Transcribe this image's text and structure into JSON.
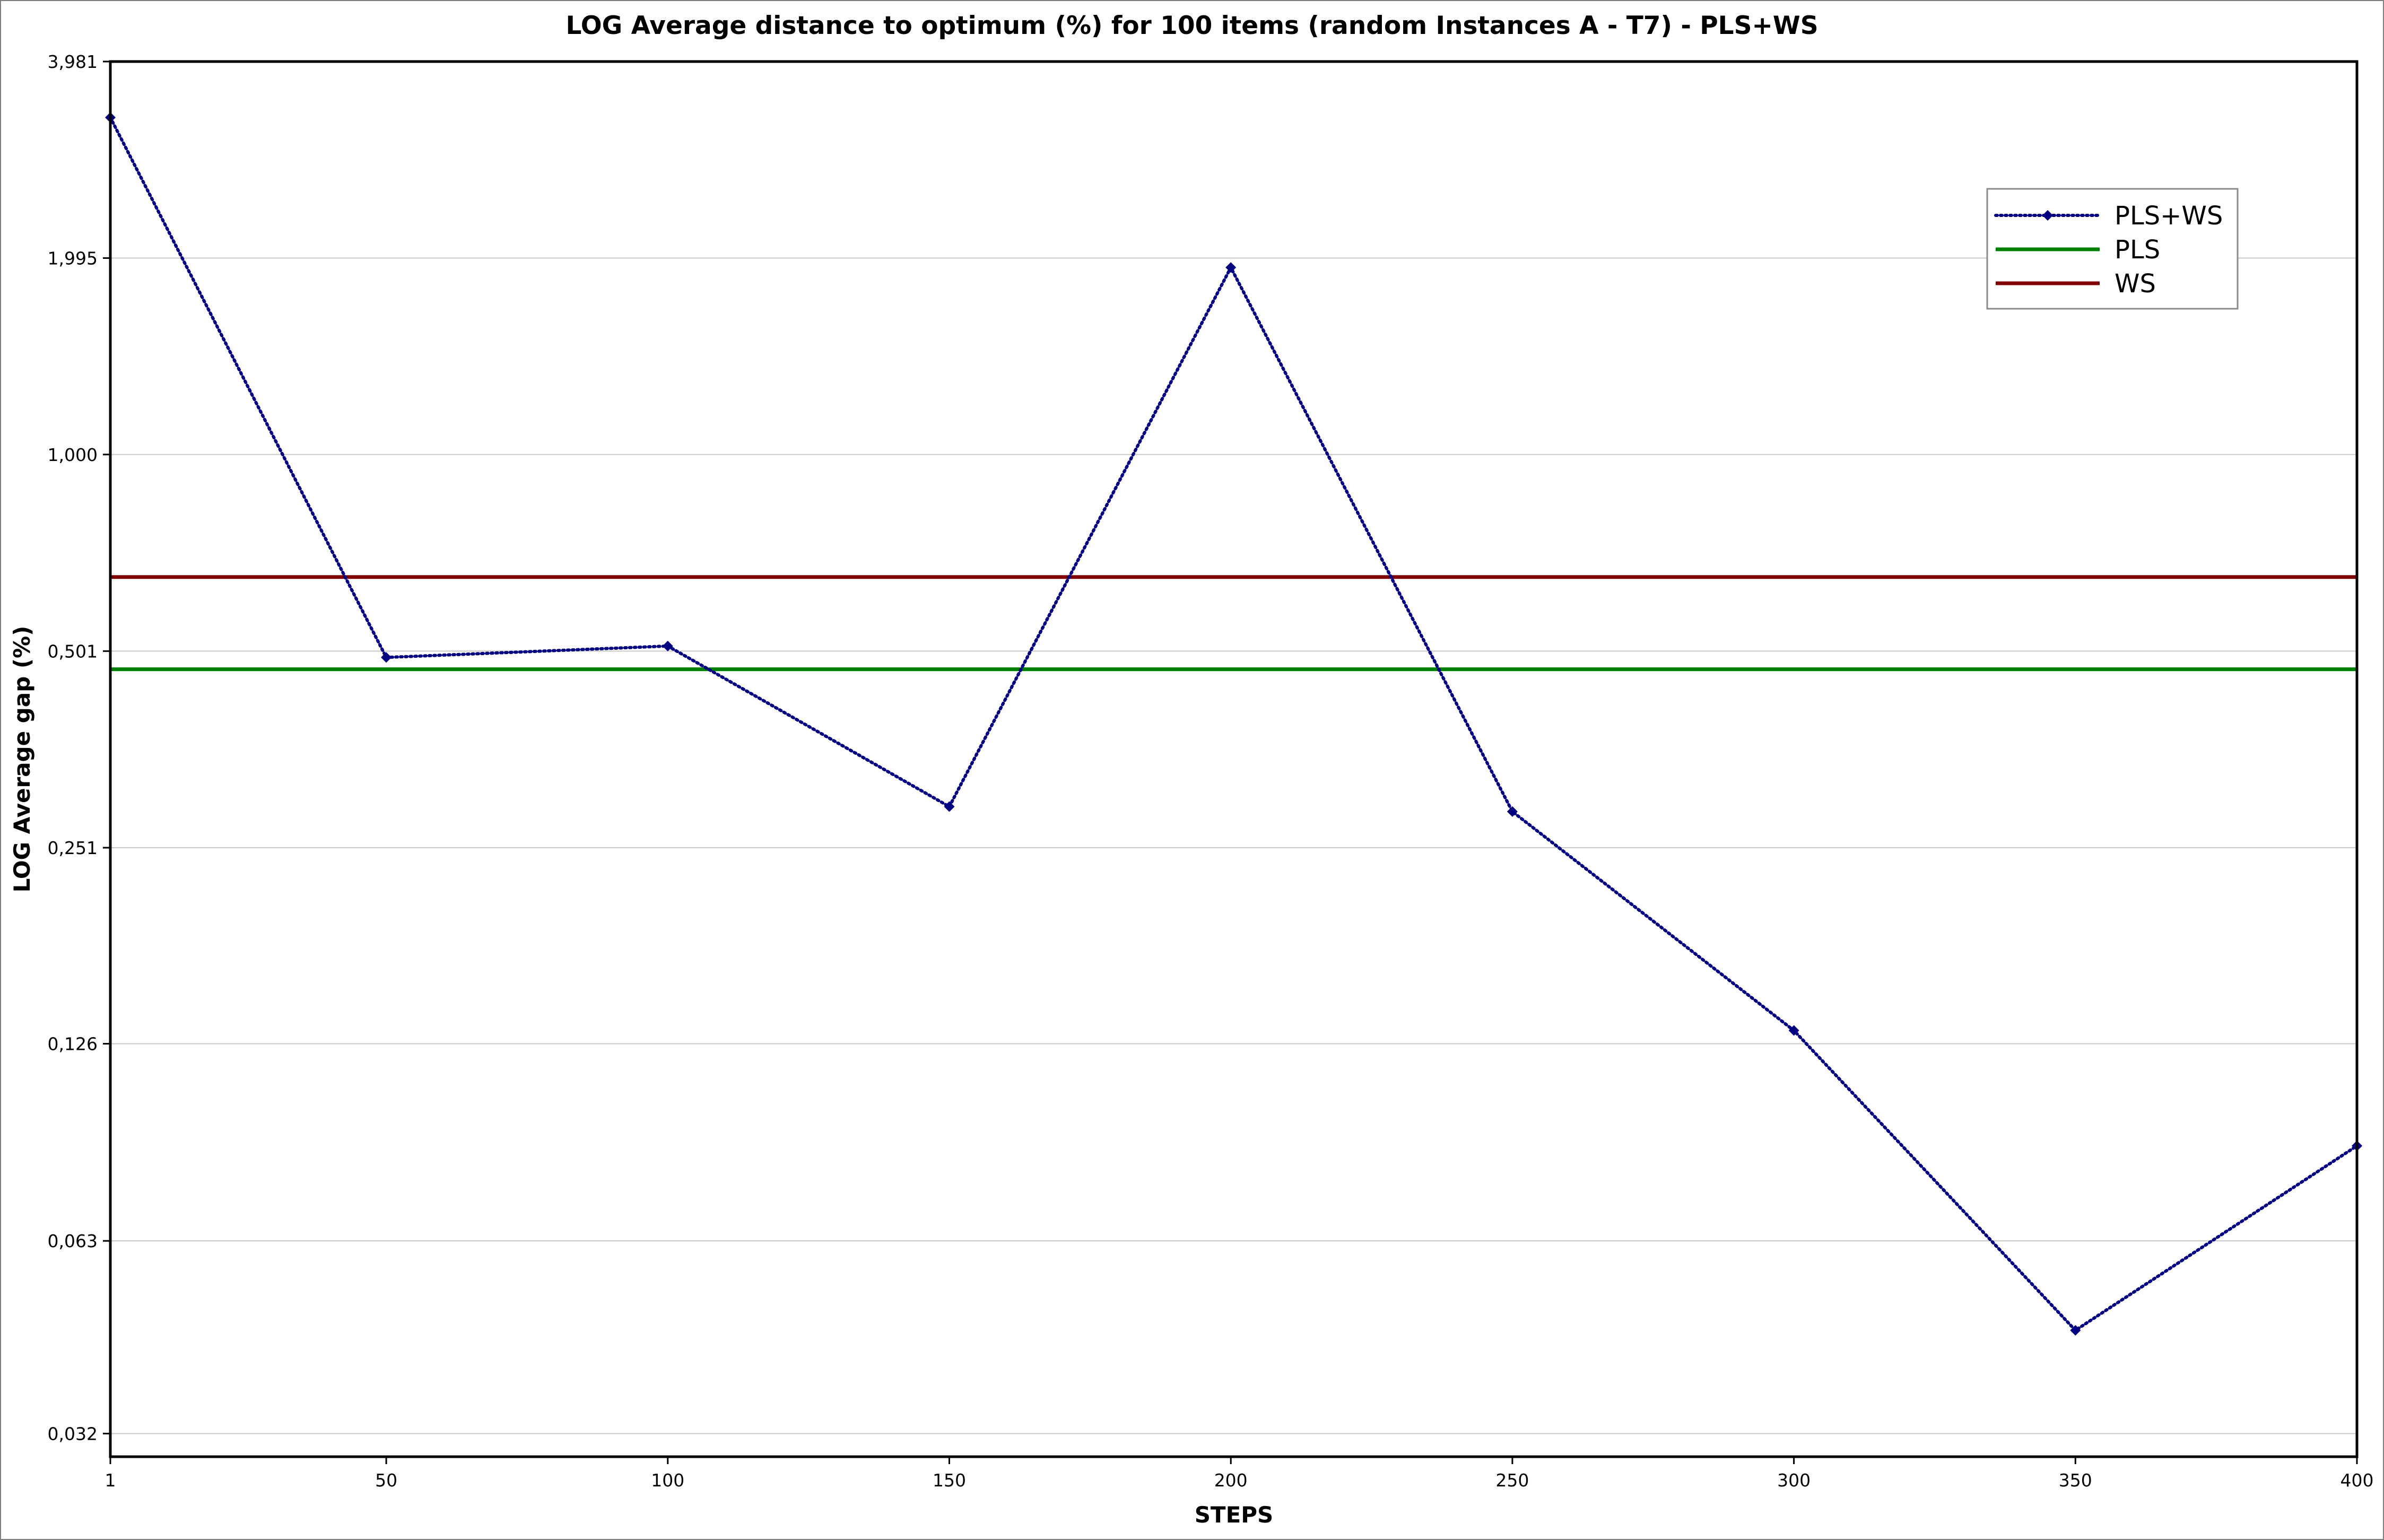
{
  "chart_data": {
    "type": "line",
    "title": "LOG Average distance to optimum (%) for 100 items (random Instances A - T7) - PLS+WS",
    "xlabel": "STEPS",
    "ylabel": "LOG Average gap (%)",
    "yscale": "log",
    "x_ticks": [
      1,
      50,
      100,
      150,
      200,
      250,
      300,
      350,
      400
    ],
    "x_tick_labels": [
      "1",
      "50",
      "100",
      "150",
      "200",
      "250",
      "300",
      "350",
      "400"
    ],
    "xlim": [
      1,
      400
    ],
    "y_ticks": [
      0.032,
      0.063,
      0.126,
      0.251,
      0.501,
      1.0,
      1.995,
      3.981
    ],
    "y_tick_labels": [
      "0,032",
      "0,063",
      "0,126",
      "0,251",
      "0,501",
      "1,000",
      "1,995",
      "3,981"
    ],
    "ylim": [
      0.0295,
      3.981
    ],
    "grid": "horizontal",
    "legend_position": "top-right",
    "series": [
      {
        "name": "PLS+WS",
        "style": "dotted-with-diamond-markers",
        "color": "#000080",
        "x": [
          1,
          50,
          100,
          150,
          200,
          250,
          300,
          350,
          400
        ],
        "y": [
          3.27,
          0.49,
          0.51,
          0.29,
          1.93,
          0.285,
          0.132,
          0.046,
          0.088
        ]
      },
      {
        "name": "PLS",
        "style": "solid",
        "color": "#008000",
        "constant": 0.47
      },
      {
        "name": "WS",
        "style": "solid",
        "color": "#800000",
        "constant": 0.65
      }
    ]
  }
}
